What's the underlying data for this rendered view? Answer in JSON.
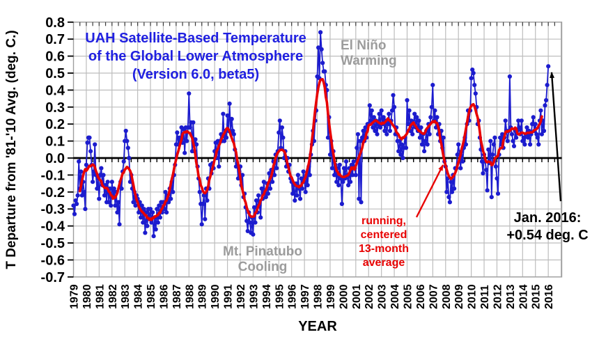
{
  "title": {
    "line1": "UAH Satellite-Based Temperature",
    "line2": "of the Global Lower Atmosphere",
    "line3": "(Version 6.0, beta5)",
    "color": "#2020E0"
  },
  "y_axis": {
    "label": "T Departure from '81-'10 Avg. (deg. C.)",
    "min": -0.7,
    "max": 0.8,
    "step": 0.1,
    "tick_labels": [
      "0.8",
      "0.7",
      "0.6",
      "0.5",
      "0.4",
      "0.3",
      "0.2",
      "0.1",
      "0.0",
      "-0.1",
      "-0.2",
      "-0.3",
      "-0.4",
      "-0.5",
      "-0.6",
      "-0.7"
    ]
  },
  "x_axis": {
    "label": "YEAR",
    "years": [
      1979,
      1980,
      1981,
      1982,
      1983,
      1984,
      1985,
      1986,
      1987,
      1988,
      1989,
      1990,
      1991,
      1992,
      1993,
      1994,
      1995,
      1996,
      1997,
      1998,
      1999,
      2000,
      2001,
      2002,
      2003,
      2004,
      2005,
      2006,
      2007,
      2008,
      2009,
      2010,
      2011,
      2012,
      2013,
      2014,
      2015,
      2016
    ]
  },
  "annotations": {
    "el_nino": {
      "line1": "El Niño",
      "line2": "Warming",
      "color": "#9C9C9C"
    },
    "pinatubo": {
      "line1": "Mt. Pinatubo",
      "line2": "Cooling",
      "color": "#9C9C9C"
    },
    "smoother": {
      "line1": "running,",
      "line2": "centered",
      "line3": "13-month",
      "line4": "average",
      "color": "#E80202"
    },
    "latest": {
      "line1": "Jan. 2016:",
      "line2": "+0.54 deg. C",
      "color": "#000000"
    }
  },
  "colors": {
    "monthly_series": "#1C1CCE",
    "smoothed_series": "#E80202",
    "grid": "#BDBDBD",
    "border": "#9E9E9E",
    "zero_axis": "#000000"
  },
  "chart_data": {
    "type": "line",
    "title": "UAH Satellite-Based Temperature of the Global Lower Atmosphere (Version 6.0, beta5)",
    "xlabel": "YEAR",
    "ylabel": "T Departure from '81-'10 Avg. (deg. C.)",
    "ylim": [
      -0.7,
      0.8
    ],
    "xlim_years": [
      1979,
      2017
    ],
    "grid": true,
    "x_start": "1979-01",
    "x_end": "2016-01",
    "points_per_year": 12,
    "highlight": {
      "month": "Jan. 2016",
      "value": 0.54
    },
    "series": [
      {
        "name": "monthly anomaly (deg. C)",
        "color": "#1C1CCE",
        "marker": "circle",
        "values": [
          -0.28,
          -0.33,
          -0.25,
          -0.27,
          -0.22,
          -0.02,
          -0.18,
          -0.08,
          -0.22,
          -0.14,
          -0.2,
          -0.3,
          -0.04,
          0.09,
          0.12,
          0.12,
          0.04,
          -0.04,
          -0.14,
          -0.08,
          0.08,
          -0.1,
          -0.18,
          -0.12,
          -0.24,
          -0.1,
          -0.06,
          -0.16,
          -0.1,
          -0.22,
          -0.16,
          -0.26,
          -0.14,
          -0.26,
          -0.18,
          -0.28,
          -0.14,
          -0.22,
          -0.18,
          -0.28,
          -0.2,
          -0.32,
          -0.26,
          -0.39,
          -0.14,
          -0.18,
          -0.08,
          -0.02,
          0.1,
          0.16,
          0.1,
          0.06,
          0.0,
          -0.14,
          -0.1,
          -0.18,
          -0.26,
          -0.2,
          -0.28,
          -0.22,
          -0.24,
          -0.32,
          -0.26,
          -0.35,
          -0.28,
          -0.38,
          -0.3,
          -0.44,
          -0.32,
          -0.4,
          -0.3,
          -0.36,
          -0.3,
          -0.38,
          -0.32,
          -0.46,
          -0.35,
          -0.42,
          -0.3,
          -0.38,
          -0.28,
          -0.35,
          -0.26,
          -0.32,
          -0.26,
          -0.3,
          -0.2,
          -0.32,
          -0.22,
          -0.26,
          -0.18,
          -0.24,
          -0.14,
          -0.2,
          -0.1,
          -0.04,
          0.08,
          0.15,
          0.08,
          0.12,
          0.1,
          0.18,
          0.09,
          0.17,
          0.03,
          0.18,
          0.1,
          0.18,
          0.38,
          0.18,
          0.21,
          0.04,
          0.21,
          0.04,
          0.11,
          0.08,
          -0.05,
          -0.12,
          -0.2,
          -0.27,
          -0.39,
          -0.27,
          -0.22,
          -0.36,
          -0.18,
          -0.25,
          -0.12,
          -0.18,
          -0.04,
          -0.09,
          -0.03,
          -0.06,
          0.04,
          0.09,
          0.0,
          0.1,
          -0.05,
          0.1,
          0.14,
          0.1,
          0.26,
          0.1,
          0.16,
          0.12,
          0.25,
          0.16,
          0.32,
          0.15,
          0.23,
          0.16,
          0.14,
          0.05,
          -0.05,
          -0.03,
          -0.12,
          -0.08,
          -0.05,
          -0.16,
          -0.1,
          -0.23,
          -0.21,
          -0.29,
          -0.37,
          -0.43,
          -0.32,
          -0.38,
          -0.44,
          -0.35,
          -0.45,
          -0.29,
          -0.38,
          -0.25,
          -0.32,
          -0.22,
          -0.28,
          -0.35,
          -0.18,
          -0.24,
          -0.14,
          -0.2,
          -0.23,
          -0.15,
          -0.21,
          -0.09,
          -0.18,
          -0.07,
          -0.14,
          -0.02,
          -0.1,
          0.02,
          -0.06,
          0.04,
          0.15,
          0.22,
          0.06,
          0.18,
          0.12,
          0.0,
          0.04,
          -0.05,
          0.0,
          -0.08,
          -0.04,
          -0.12,
          -0.14,
          -0.21,
          -0.16,
          -0.25,
          -0.15,
          -0.22,
          -0.1,
          -0.18,
          -0.24,
          -0.12,
          -0.18,
          -0.08,
          -0.14,
          -0.2,
          -0.1,
          -0.16,
          -0.05,
          -0.1,
          0.02,
          0.08,
          0.16,
          0.1,
          0.22,
          0.28,
          0.48,
          0.65,
          0.47,
          0.74,
          0.64,
          0.56,
          0.51,
          0.51,
          0.43,
          0.4,
          0.12,
          0.24,
          0.02,
          0.1,
          -0.06,
          0.04,
          -0.1,
          -0.04,
          -0.14,
          -0.06,
          -0.16,
          -0.04,
          -0.12,
          -0.27,
          -0.14,
          -0.06,
          -0.12,
          -0.02,
          -0.1,
          -0.16,
          -0.06,
          -0.14,
          -0.04,
          -0.1,
          -0.02,
          -0.06,
          -0.1,
          0.06,
          0.14,
          -0.24,
          0.1,
          -0.26,
          0.12,
          0.16,
          0.1,
          0.18,
          0.12,
          0.2,
          0.2,
          0.31,
          0.22,
          0.28,
          0.18,
          0.24,
          0.16,
          0.22,
          0.14,
          0.2,
          0.26,
          0.18,
          0.28,
          0.2,
          0.24,
          0.16,
          0.22,
          0.14,
          0.2,
          0.26,
          0.16,
          0.22,
          0.28,
          0.37,
          0.3,
          0.14,
          0.18,
          0.1,
          0.04,
          0.1,
          0.02,
          0.08,
          0.0,
          0.06,
          0.12,
          0.06,
          0.34,
          0.2,
          0.28,
          0.16,
          0.22,
          0.14,
          0.2,
          0.26,
          0.18,
          0.24,
          0.16,
          0.22,
          0.12,
          0.18,
          0.08,
          0.14,
          0.04,
          0.1,
          0.16,
          0.08,
          0.2,
          0.14,
          0.24,
          0.3,
          0.43,
          0.22,
          0.28,
          0.18,
          0.24,
          0.14,
          0.2,
          0.1,
          0.16,
          0.06,
          0.12,
          -0.02,
          -0.05,
          -0.2,
          -0.12,
          -0.23,
          -0.26,
          -0.14,
          -0.2,
          -0.1,
          -0.18,
          -0.06,
          -0.06,
          0.02,
          0.08,
          0.02,
          -0.06,
          0.04,
          -0.02,
          0.06,
          0.12,
          0.08,
          0.2,
          0.28,
          0.22,
          0.28,
          0.47,
          0.52,
          0.5,
          0.43,
          0.38,
          0.3,
          0.2,
          0.22,
          0.12,
          0.05,
          -0.02,
          -0.09,
          0.02,
          -0.02,
          -0.07,
          -0.19,
          0.05,
          -0.03,
          0.1,
          -0.23,
          0.02,
          0.08,
          0.12,
          -0.05,
          -0.12,
          -0.21,
          0.02,
          0.12,
          0.08,
          0.14,
          0.06,
          0.12,
          0.22,
          0.16,
          0.1,
          0.16,
          0.48,
          0.18,
          0.14,
          0.1,
          0.07,
          0.16,
          0.12,
          0.16,
          0.22,
          0.18,
          0.14,
          0.22,
          0.1,
          0.12,
          0.08,
          0.14,
          0.18,
          0.12,
          0.16,
          0.08,
          0.14,
          0.2,
          0.24,
          0.16,
          0.2,
          0.14,
          0.12,
          0.08,
          0.22,
          0.28,
          0.14,
          0.22,
          0.16,
          0.31,
          0.34,
          0.43,
          0.54
        ]
      },
      {
        "name": "running, centered 13-month average",
        "color": "#E80202",
        "derived_from": "monthly anomaly (deg. C)",
        "window": 13
      }
    ]
  }
}
